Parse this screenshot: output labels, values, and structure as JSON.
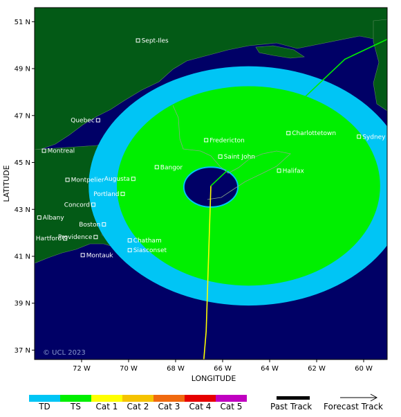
{
  "axes": {
    "xlabel": "LONGITUDE",
    "ylabel": "LATITUDE",
    "lon_range": [
      -74,
      -59
    ],
    "lat_range": [
      36.6,
      51.6
    ],
    "lon_ticks": [
      "72 W",
      "70 W",
      "68 W",
      "66 W",
      "64 W",
      "62 W",
      "60 W"
    ],
    "lat_ticks": [
      "51 N",
      "49 N",
      "47 N",
      "45 N",
      "43 N",
      "41 N",
      "39 N",
      "37 N"
    ]
  },
  "cities": [
    {
      "name": "Sept-Iles",
      "lon": -69.6,
      "lat": 50.2
    },
    {
      "name": "Quebec",
      "lon": -71.3,
      "lat": 46.8
    },
    {
      "name": "Montreal",
      "lon": -73.6,
      "lat": 45.5
    },
    {
      "name": "Fredericton",
      "lon": -66.7,
      "lat": 45.95
    },
    {
      "name": "Charlottetown",
      "lon": -63.2,
      "lat": 46.25
    },
    {
      "name": "Sydney",
      "lon": -60.2,
      "lat": 46.1
    },
    {
      "name": "Saint John",
      "lon": -66.1,
      "lat": 45.25
    },
    {
      "name": "Halifax",
      "lon": -63.6,
      "lat": 44.65
    },
    {
      "name": "Augusta",
      "lon": -69.8,
      "lat": 44.3
    },
    {
      "name": "Bangor",
      "lon": -68.8,
      "lat": 44.8
    },
    {
      "name": "Montpelier",
      "lon": -72.6,
      "lat": 44.26
    },
    {
      "name": "Portland",
      "lon": -70.25,
      "lat": 43.66
    },
    {
      "name": "Concord",
      "lon": -71.5,
      "lat": 43.2
    },
    {
      "name": "Albany",
      "lon": -73.8,
      "lat": 42.65
    },
    {
      "name": "Boston",
      "lon": -71.05,
      "lat": 42.36
    },
    {
      "name": "Providence",
      "lon": -71.4,
      "lat": 41.82
    },
    {
      "name": "Chatham",
      "lon": -69.95,
      "lat": 41.68
    },
    {
      "name": "Hartford",
      "lon": -72.7,
      "lat": 41.76
    },
    {
      "name": "Siasconset",
      "lon": -69.95,
      "lat": 41.26
    },
    {
      "name": "Montauk",
      "lon": -71.95,
      "lat": 41.05
    }
  ],
  "track": {
    "past": [
      [
        -66.8,
        36.6
      ],
      [
        -66.7,
        37.8
      ],
      [
        -66.5,
        44.0
      ]
    ],
    "forecast": [
      [
        -66.5,
        44.0
      ],
      [
        -60.8,
        49.4
      ],
      [
        -59.0,
        50.25
      ]
    ]
  },
  "wind_field": {
    "center": [
      -64.9,
      44.0
    ],
    "outer_radius_lon": 6.8,
    "outer_radius_lat": 5.1,
    "ts_radius_lon": 5.6,
    "ts_radius_lat": 4.25,
    "eye_center": [
      -66.5,
      43.95
    ],
    "eye_radius_lon": 1.15,
    "eye_radius_lat": 0.85
  },
  "watermark": "© UCL 2023",
  "colors": {
    "ocean": "#000066",
    "land": "#035a16",
    "td": "#00c5f5",
    "ts": "#00ef00",
    "cat1": "#ffff00",
    "cat2": "#f5c300",
    "cat3": "#f06a0f",
    "cat4": "#e60000",
    "cat5": "#c000c0",
    "past_track": "#000000"
  },
  "legend": {
    "categories": [
      "TD",
      "TS",
      "Cat 1",
      "Cat 2",
      "Cat 3",
      "Cat 4",
      "Cat 5"
    ],
    "past_track_label": "Past Track",
    "forecast_track_label": "Forecast Track"
  }
}
